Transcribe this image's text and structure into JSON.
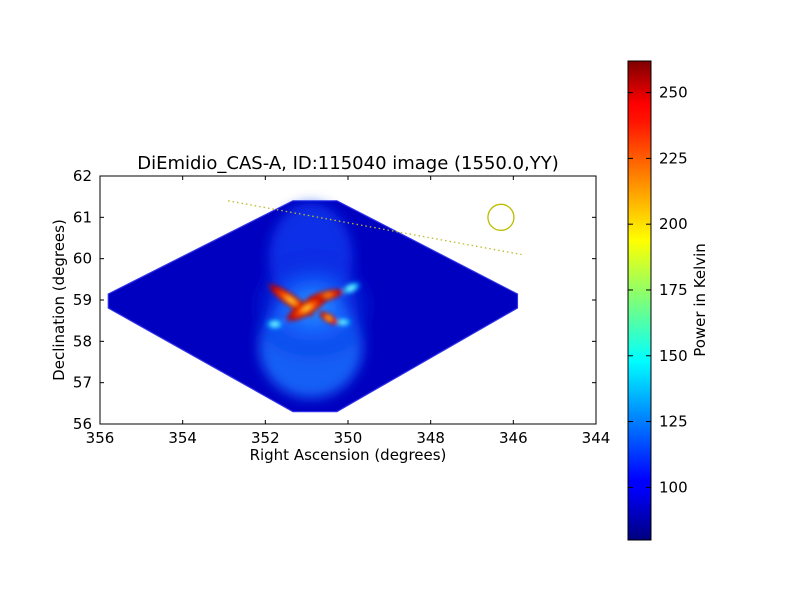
{
  "chart_data": {
    "type": "heatmap",
    "title": "DiEmidio_CAS-A, ID:115040 image (1550.0,YY)",
    "xlabel": "Right Ascension (degrees)",
    "ylabel": "Declination (degrees)",
    "xlim": [
      356,
      344
    ],
    "ylim": [
      56,
      62
    ],
    "x_ticks": [
      "356",
      "354",
      "352",
      "350",
      "348",
      "346",
      "344"
    ],
    "y_ticks": [
      "56",
      "57",
      "58",
      "59",
      "60",
      "61",
      "62"
    ],
    "colorbar": {
      "label": "Power in Kelvin",
      "range": [
        80,
        262
      ],
      "ticks": [
        "100",
        "125",
        "150",
        "175",
        "200",
        "225",
        "250"
      ],
      "colormap": "jet"
    },
    "footprint": {
      "corners": [
        [
          355.8,
          59.0
        ],
        [
          350.8,
          61.4
        ],
        [
          345.9,
          59.0
        ],
        [
          350.8,
          56.3
        ]
      ],
      "background_value": 82
    },
    "hotspot": {
      "center": [
        350.9,
        58.85
      ],
      "peak_value": 260
    },
    "track_line": {
      "from": [
        352.9,
        61.4
      ],
      "to": [
        345.8,
        60.1
      ],
      "color": "#bcbc2a"
    },
    "beam_circle": {
      "center": [
        346.3,
        61.0
      ],
      "color": "#bcbc00"
    }
  }
}
